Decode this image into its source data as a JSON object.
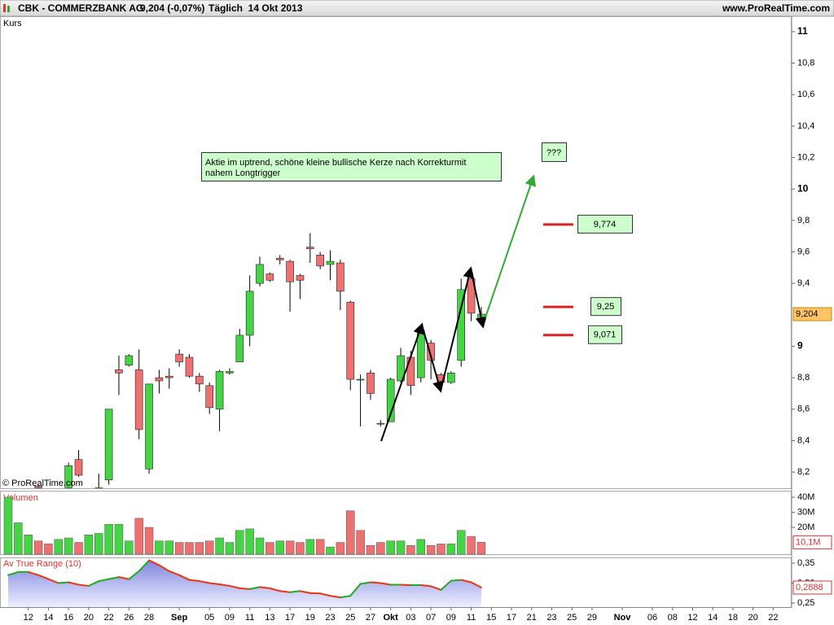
{
  "header": {
    "symbol": "CBK - COMMERZBANK AG",
    "quote": "9,204 (-0,07%)",
    "period": "Täglich  14 Okt 2013",
    "site": "www.ProRealTime.com"
  },
  "chart_data": [
    {
      "type": "candlestick",
      "title": "Kurs",
      "watermark": "© ProRealTime.com",
      "up_color": "#44d444",
      "down_color": "#ee7070",
      "open": [
        null,
        null,
        null,
        8.11,
        null,
        null,
        8.1,
        8.28,
        null,
        8.05,
        8.15,
        8.85,
        8.88,
        8.85,
        8.22,
        8.8,
        8.81,
        8.95,
        8.93,
        8.81,
        8.75,
        8.6,
        8.83,
        8.9,
        9.07,
        9.4,
        9.46,
        9.56,
        9.54,
        9.45,
        9.63,
        9.58,
        9.52,
        9.53,
        9.28,
        8.79,
        8.83,
        8.51,
        8.52,
        8.78,
        8.93,
        8.8,
        9.02,
        8.82,
        8.77,
        8.91,
        9.43,
        9.16,
        null,
        null,
        null,
        null,
        null,
        null,
        null,
        null,
        null,
        null,
        null,
        null,
        null,
        null,
        null,
        null,
        null,
        null,
        null,
        null,
        null,
        null,
        null,
        null,
        null,
        null,
        null,
        null,
        null
      ],
      "high": [
        null,
        null,
        null,
        8.12,
        null,
        null,
        8.26,
        8.34,
        null,
        8.19,
        8.6,
        8.94,
        8.95,
        8.98,
        8.76,
        8.85,
        8.86,
        8.98,
        8.95,
        8.83,
        8.77,
        8.85,
        8.86,
        9.11,
        9.45,
        9.57,
        9.47,
        9.58,
        9.55,
        9.46,
        9.72,
        9.6,
        9.61,
        9.55,
        9.29,
        8.82,
        8.85,
        8.53,
        8.8,
        8.99,
        8.97,
        9.13,
        9.04,
        8.83,
        8.84,
        9.43,
        9.45,
        9.25,
        null,
        null,
        null,
        null,
        null,
        null,
        null,
        null,
        null,
        null,
        null,
        null,
        null,
        null,
        null,
        null,
        null,
        null,
        null,
        null,
        null,
        null,
        null,
        null,
        null,
        null,
        null,
        null,
        null
      ],
      "low": [
        null,
        null,
        null,
        8.09,
        null,
        null,
        8.08,
        8.17,
        null,
        8.05,
        8.12,
        8.69,
        8.87,
        8.41,
        8.19,
        8.7,
        8.73,
        8.87,
        8.8,
        8.71,
        8.57,
        8.46,
        8.82,
        8.9,
        9.0,
        9.38,
        9.41,
        9.52,
        9.22,
        9.3,
        9.53,
        9.49,
        9.42,
        9.23,
        8.72,
        8.49,
        8.66,
        8.49,
        8.52,
        8.77,
        8.69,
        8.77,
        8.79,
        8.72,
        8.76,
        8.87,
        9.16,
        9.14,
        null,
        null,
        null,
        null,
        null,
        null,
        null,
        null,
        null,
        null,
        null,
        null,
        null,
        null,
        null,
        null,
        null,
        null,
        null,
        null,
        null,
        null,
        null,
        null,
        null,
        null,
        null,
        null,
        null
      ],
      "close": [
        null,
        null,
        null,
        8.1,
        null,
        null,
        8.24,
        8.18,
        null,
        8.1,
        8.6,
        8.83,
        8.94,
        8.47,
        8.76,
        8.78,
        8.8,
        8.9,
        8.81,
        8.76,
        8.61,
        8.84,
        8.84,
        9.07,
        9.35,
        9.52,
        9.42,
        9.55,
        9.41,
        9.42,
        9.62,
        9.51,
        9.54,
        9.35,
        8.79,
        8.79,
        8.7,
        8.51,
        8.79,
        8.94,
        8.75,
        9.1,
        8.91,
        8.77,
        8.83,
        9.36,
        9.21,
        9.204,
        null,
        null,
        null,
        null,
        null,
        null,
        null,
        null,
        null,
        null,
        null,
        null,
        null,
        null,
        null,
        null,
        null,
        null,
        null,
        null,
        null,
        null,
        null,
        null,
        null,
        null,
        null,
        null,
        null
      ],
      "last_value_label": "9,204",
      "ylim": [
        8.097,
        11.098
      ],
      "yticks": [
        11,
        {
          "value": 10.8,
          "label": "10,8"
        },
        {
          "value": 10.6,
          "label": "10,6"
        },
        {
          "value": 10.4,
          "label": "10,4"
        },
        {
          "value": 10.2,
          "label": "10,2"
        },
        10,
        {
          "value": 9.8,
          "label": "9,8"
        },
        {
          "value": 9.6,
          "label": "9,6"
        },
        {
          "value": 9.4,
          "label": "9,4"
        },
        9,
        {
          "value": 8.8,
          "label": "8,8"
        },
        {
          "value": 8.6,
          "label": "8,6"
        },
        {
          "value": 8.4,
          "label": "8,4"
        },
        {
          "value": 8.2,
          "label": "8,2"
        }
      ],
      "note": [
        "Aktie im uptrend, schöne kleine bullische Kerze nach Korrekturmit",
        "nahem Longtrigger"
      ],
      "question": "???",
      "levels": [
        {
          "value": 9.774,
          "label": "9,774"
        },
        {
          "value": 9.25,
          "label": "9,25"
        },
        {
          "value": 9.071,
          "label": "9,071"
        }
      ],
      "level_color": "#dd2222"
    },
    {
      "type": "bar",
      "title": "Volumen",
      "values": [
        40,
        23,
        15,
        11,
        9,
        12,
        13,
        10,
        15,
        16,
        22,
        22,
        11,
        26,
        20,
        11,
        11,
        10,
        10,
        10,
        11,
        13,
        10,
        18,
        19,
        13,
        10,
        11,
        11,
        10,
        12,
        12,
        7,
        10,
        31,
        18,
        8,
        10,
        11,
        11,
        8,
        12,
        8,
        9,
        9,
        18,
        14,
        10.1,
        null,
        null,
        null,
        null,
        null,
        null,
        null,
        null,
        null,
        null,
        null,
        null,
        null,
        null,
        null,
        null,
        null,
        null,
        null,
        null,
        null,
        null,
        null,
        null,
        null,
        null,
        null,
        null,
        null
      ],
      "colors": [
        "#44d444",
        "#44d444",
        "#44d444",
        "#ee7070",
        "#ee7070",
        "#44d444",
        "#44d444",
        "#ee7070",
        "#44d444",
        "#44d444",
        "#44d444",
        "#44d444",
        "#44d444",
        "#ee7070",
        "#ee7070",
        "#44d444",
        "#44d444",
        "#ee7070",
        "#ee7070",
        "#ee7070",
        "#ee7070",
        "#44d444",
        "#44d444",
        "#44d444",
        "#44d444",
        "#44d444",
        "#ee7070",
        "#44d444",
        "#ee7070",
        "#ee7070",
        "#44d444",
        "#ee7070",
        "#44d444",
        "#ee7070",
        "#ee7070",
        "#ee7070",
        "#ee7070",
        "#ee7070",
        "#44d444",
        "#44d444",
        "#ee7070",
        "#44d444",
        "#ee7070",
        "#ee7070",
        "#44d444",
        "#44d444",
        "#ee7070",
        "#ee7070",
        null,
        null,
        null,
        null,
        null,
        null,
        null,
        null,
        null,
        null,
        null,
        null,
        null,
        null,
        null,
        null,
        null,
        null,
        null,
        null,
        null,
        null,
        null,
        null,
        null,
        null,
        null,
        null,
        null
      ],
      "last_value_label": "10,1M",
      "ylim": [
        2.2,
        44.3
      ],
      "yticks": [
        {
          "value": 40,
          "label": "40M"
        },
        {
          "value": 30,
          "label": "30M"
        },
        {
          "value": 20,
          "label": "20M"
        }
      ]
    },
    {
      "type": "line",
      "title": "Av True Range (10)",
      "up_color": "#22aa22",
      "down_color": "#ee3311",
      "categories": [
        null,
        null,
        "12",
        null,
        "14",
        null,
        "16",
        null,
        "20",
        null,
        "22",
        null,
        "26",
        null,
        "28",
        null,
        null,
        "Sep",
        null,
        null,
        "05",
        null,
        "09",
        null,
        "11",
        null,
        "13",
        null,
        "17",
        null,
        "19",
        null,
        "23",
        null,
        "25",
        null,
        "27",
        null,
        "Okt",
        null,
        "03",
        null,
        "07",
        null,
        "09",
        null,
        "11",
        null,
        "15",
        null,
        "17",
        null,
        "21",
        null,
        "23",
        null,
        "25",
        null,
        "29",
        null,
        null,
        "Nov",
        null,
        null,
        "06",
        null,
        "08",
        null,
        "12",
        null,
        "14",
        null,
        "18",
        null,
        "20",
        null,
        "22"
      ],
      "values": [
        0.32,
        0.328,
        0.328,
        0.32,
        0.31,
        0.3,
        0.302,
        0.296,
        0.293,
        0.305,
        0.31,
        0.315,
        0.31,
        0.33,
        0.357,
        0.345,
        0.33,
        0.32,
        0.308,
        0.305,
        0.3,
        0.297,
        0.293,
        0.287,
        0.285,
        0.29,
        0.287,
        0.28,
        0.277,
        0.28,
        0.275,
        0.274,
        0.268,
        0.264,
        0.268,
        0.298,
        0.302,
        0.3,
        0.296,
        0.296,
        0.295,
        0.295,
        0.292,
        0.283,
        0.306,
        0.308,
        0.302,
        0.2888,
        null,
        null,
        null,
        null,
        null,
        null,
        null,
        null,
        null,
        null,
        null,
        null,
        null,
        null,
        null,
        null,
        null,
        null,
        null,
        null,
        null,
        null,
        null,
        null,
        null,
        null,
        null,
        null,
        null
      ],
      "last_value_label": "0,2888",
      "ylim": [
        0.2398,
        0.3643
      ],
      "yticks": [
        {
          "value": 0.35,
          "label": "0,35"
        },
        {
          "value": 0.3,
          "label": "0,30"
        },
        {
          "value": 0.25,
          "label": "0,25"
        }
      ]
    }
  ]
}
